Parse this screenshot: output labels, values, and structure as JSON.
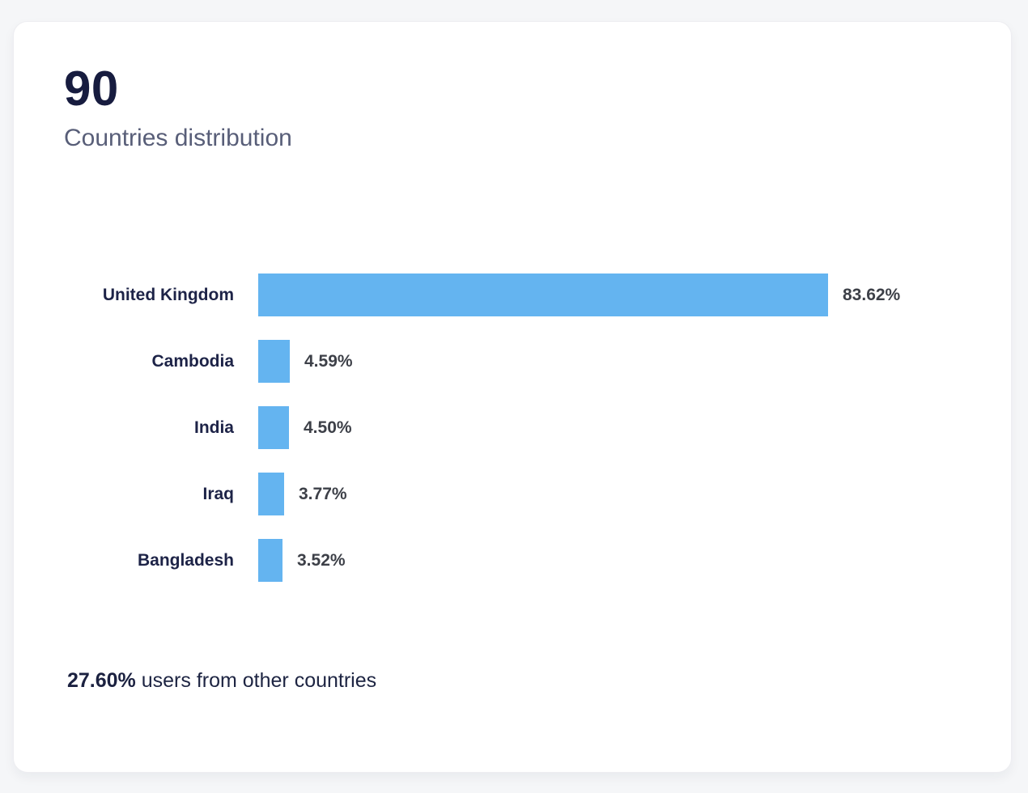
{
  "page": {
    "background_color": "#f5f6f8"
  },
  "card": {
    "stat_value": "90",
    "stat_label": "Countries distribution",
    "footer": {
      "highlight": "27.60%",
      "text": " users from other countries"
    }
  },
  "chart_data": {
    "type": "bar",
    "orientation": "horizontal",
    "title": "Countries distribution",
    "categories": [
      "United Kingdom",
      "Cambodia",
      "India",
      "Iraq",
      "Bangladesh"
    ],
    "values": [
      83.62,
      4.59,
      4.5,
      3.77,
      3.52
    ],
    "value_labels": [
      "83.62%",
      "4.59%",
      "4.50%",
      "3.77%",
      "3.52%"
    ],
    "xlim": [
      0,
      100
    ],
    "grid": false,
    "legend": false,
    "bar_color": "#64b4f0",
    "label_color": "#1d2347",
    "value_color": "#3d4048"
  }
}
